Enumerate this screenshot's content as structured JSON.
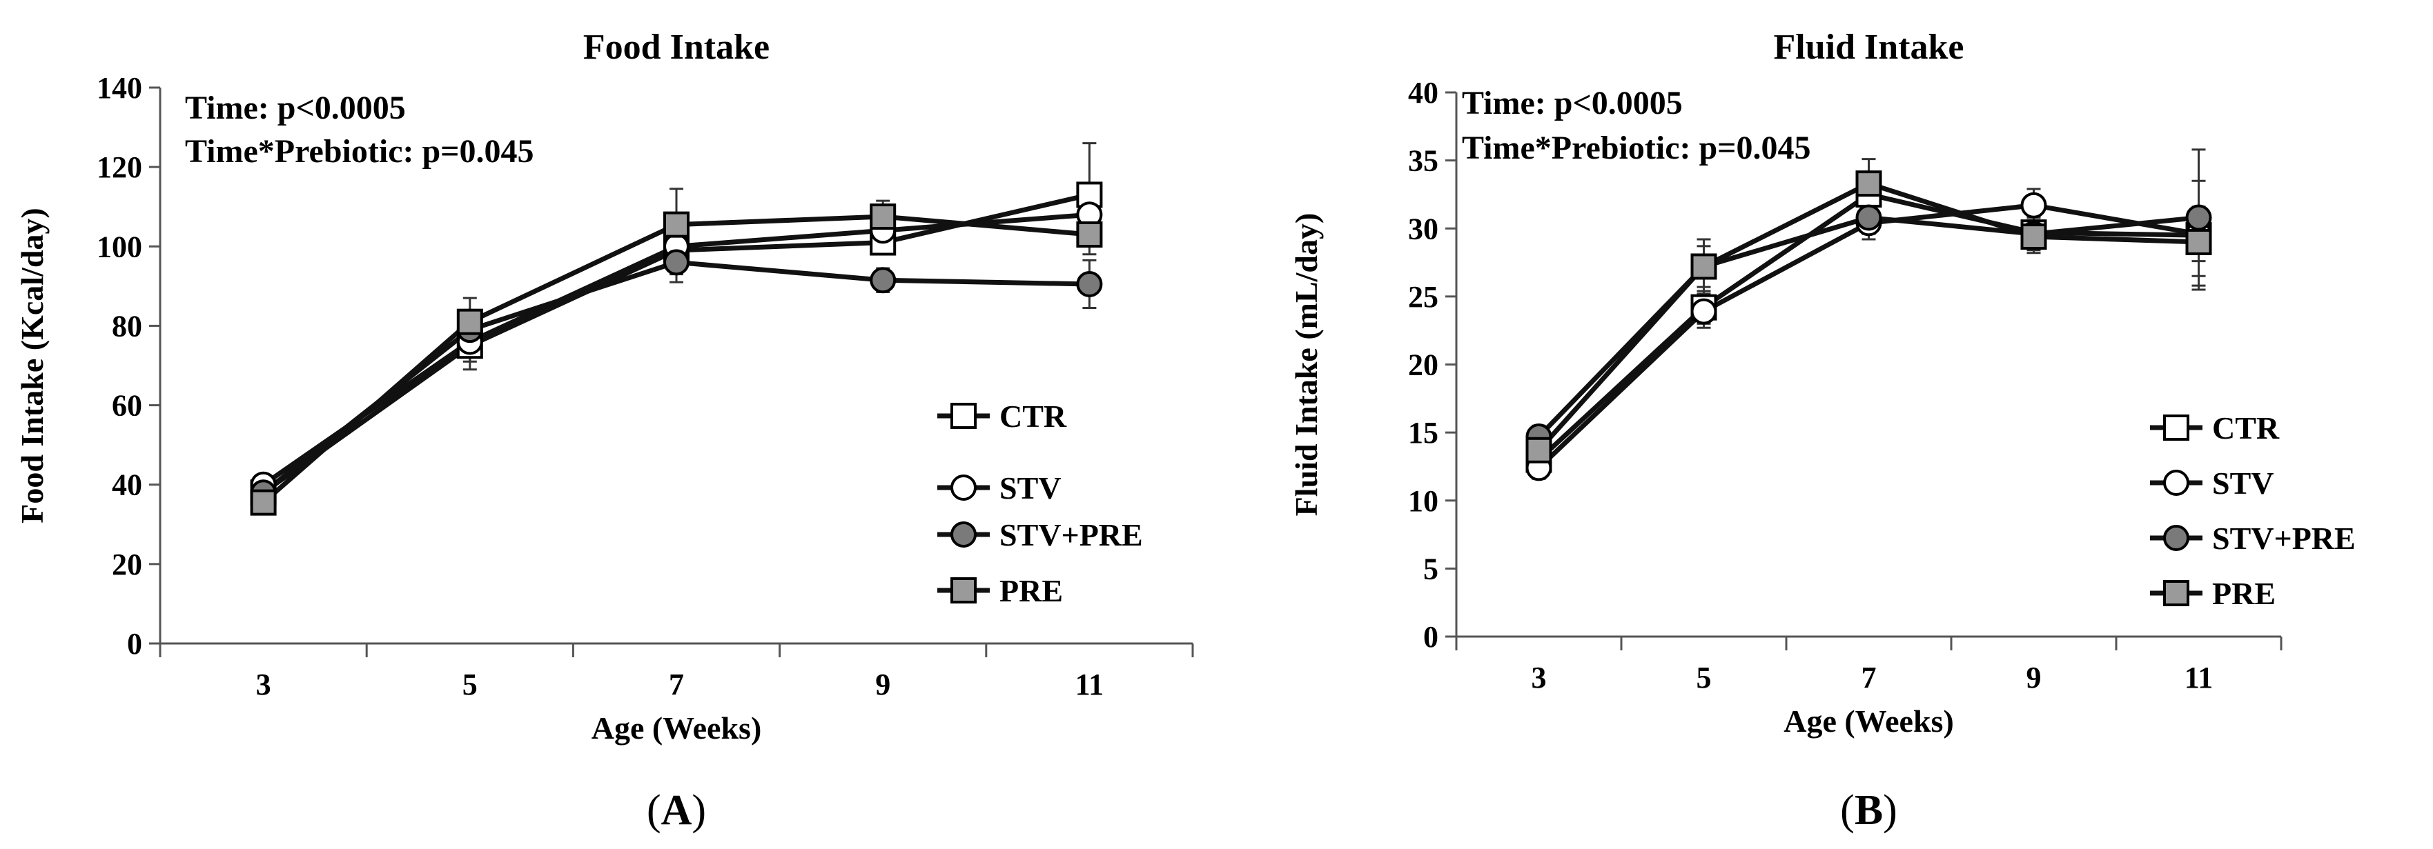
{
  "chart_data": [
    {
      "type": "line",
      "panel_label": "A",
      "title": "Food Intake",
      "xlabel": "Age (Weeks)",
      "ylabel": "Food Intake (Kcal/day)",
      "ylim": [
        0,
        140
      ],
      "yticks": [
        0,
        20,
        40,
        60,
        80,
        100,
        120,
        140
      ],
      "x": [
        3,
        5,
        7,
        9,
        11
      ],
      "annotations": [
        "Time: p<0.0005",
        "Time*Prebiotic:  p=0.045"
      ],
      "legend_position": "lower-right",
      "series": [
        {
          "name": "CTR",
          "marker": "square-open",
          "values": [
            38,
            75,
            99,
            101,
            113
          ],
          "error": [
            2,
            6,
            6,
            3,
            13
          ]
        },
        {
          "name": "STV",
          "marker": "circle-open",
          "values": [
            40,
            76,
            100,
            104,
            108
          ],
          "error": [
            2,
            5,
            5,
            3,
            6
          ]
        },
        {
          "name": "STV+PRE",
          "marker": "circle-filled",
          "values": [
            38,
            79,
            96,
            91.5,
            90.5
          ],
          "error": [
            2,
            5,
            5,
            3,
            6
          ]
        },
        {
          "name": "PRE",
          "marker": "square-filled",
          "values": [
            35.5,
            81,
            105.5,
            107.5,
            103
          ],
          "error": [
            2,
            6,
            9,
            4,
            5
          ]
        }
      ]
    },
    {
      "type": "line",
      "panel_label": "B",
      "title": "Fluid Intake",
      "xlabel": "Age (Weeks)",
      "ylabel": "Fluid Intake (mL/day)",
      "ylim": [
        0,
        40
      ],
      "yticks": [
        0,
        5,
        10,
        15,
        20,
        25,
        30,
        35,
        40
      ],
      "x": [
        3,
        5,
        7,
        9,
        11
      ],
      "annotations": [
        "Time: p<0.0005",
        "Time*Prebiotic:  p=0.045"
      ],
      "legend_position": "lower-right",
      "series": [
        {
          "name": "CTR",
          "marker": "square-open",
          "values": [
            13,
            24.2,
            32.5,
            29.7,
            29.5
          ],
          "error": [
            0.8,
            1.2,
            1.5,
            1.2,
            4
          ]
        },
        {
          "name": "STV",
          "marker": "circle-open",
          "values": [
            12.4,
            23.9,
            30.4,
            31.7,
            29.6
          ],
          "error": [
            0.8,
            1.2,
            1.2,
            1.2,
            2
          ]
        },
        {
          "name": "STV+PRE",
          "marker": "circle-filled",
          "values": [
            14.7,
            27.2,
            30.8,
            29.6,
            30.8
          ],
          "error": [
            0.8,
            1.5,
            1.2,
            1.2,
            5
          ]
        },
        {
          "name": "PRE",
          "marker": "square-filled",
          "values": [
            13.7,
            27.2,
            33.3,
            29.4,
            29
          ],
          "error": [
            0.8,
            2,
            1.8,
            1.2,
            2.5
          ]
        }
      ]
    }
  ]
}
